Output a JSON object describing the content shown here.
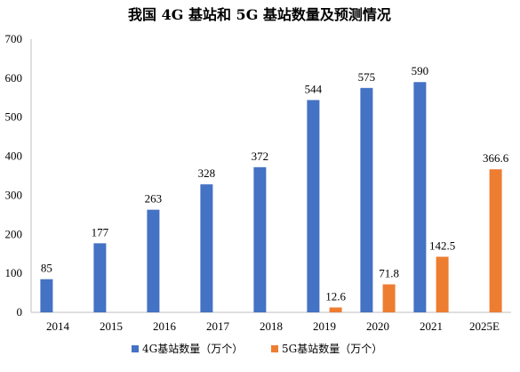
{
  "chart_data": {
    "type": "bar",
    "title": "我国 4G 基站和 5G 基站数量及预测情况",
    "categories": [
      "2014",
      "2015",
      "2016",
      "2017",
      "2018",
      "2019",
      "2020",
      "2021",
      "2025E"
    ],
    "series": [
      {
        "name": "4G基站数量（万个）",
        "color": "#4472C4",
        "values": [
          85,
          177,
          263,
          328,
          372,
          544,
          575,
          590,
          null
        ]
      },
      {
        "name": "5G基站数量（万个）",
        "color": "#ED7D31",
        "values": [
          null,
          null,
          null,
          null,
          null,
          12.6,
          71.8,
          142.5,
          366.6
        ]
      }
    ],
    "data_labels": [
      [
        "85",
        "177",
        "263",
        "328",
        "372",
        "544",
        "575",
        "590",
        ""
      ],
      [
        "",
        "",
        "",
        "",
        "",
        "12.6",
        "71.8",
        "142.5",
        "366.6"
      ]
    ],
    "ylim": [
      0,
      700
    ],
    "yticks": [
      "0",
      "100",
      "200",
      "300",
      "400",
      "500",
      "600",
      "700"
    ],
    "xlabel": "",
    "ylabel": "",
    "grid": false,
    "legend_position": "bottom"
  }
}
